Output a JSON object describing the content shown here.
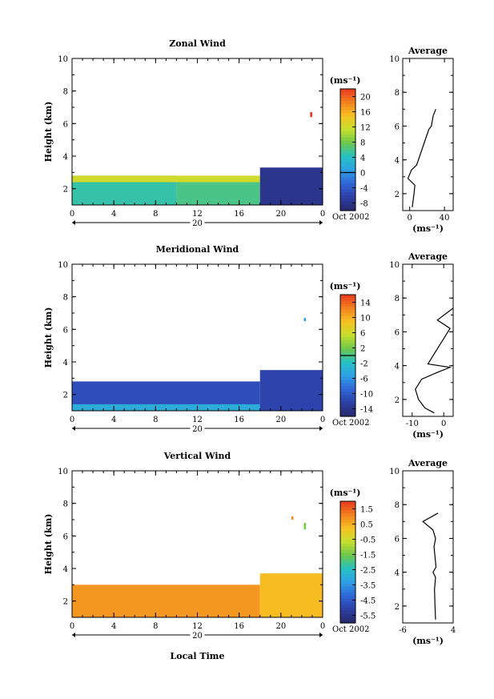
{
  "colors": {
    "axis": "#000000",
    "background": "#ffffff"
  },
  "chart_data": [
    {
      "type": "heatmap",
      "title": "Zonal Wind",
      "ylabel": "Height (km)",
      "xlabel": "",
      "x_ticks": [
        "0",
        "4",
        "8",
        "12",
        "16",
        "20",
        "0"
      ],
      "xlim": [
        0,
        24
      ],
      "ylim": [
        1,
        10
      ],
      "y_ticks": [
        "2",
        "4",
        "6",
        "8",
        "10"
      ],
      "date_marker": "20",
      "date_label": "Oct 2002",
      "colorbar": {
        "unit": "(ms⁻¹)",
        "ticks": [
          "20",
          "16",
          "12",
          "8",
          "4",
          "0",
          "-4",
          "-8"
        ],
        "min": -10,
        "max": 22,
        "zero_line": 0
      },
      "regions": [
        {
          "t0": 0,
          "t1": 10,
          "h0": 1,
          "h1": 2.8,
          "value": 5
        },
        {
          "t0": 10,
          "t1": 18,
          "h0": 1,
          "h1": 2.6,
          "value": 6
        },
        {
          "t0": 0,
          "t1": 18,
          "h0": 2.4,
          "h1": 2.8,
          "value": 12
        },
        {
          "t0": 18,
          "t1": 24,
          "h0": 1,
          "h1": 3.3,
          "value": -8
        },
        {
          "t0": 22.8,
          "t1": 23.0,
          "h0": 6.4,
          "h1": 6.7,
          "value": 22
        }
      ],
      "average": {
        "title": "Average",
        "xlabel": "(ms⁻¹)",
        "x_ticks": [
          "0",
          "40"
        ],
        "xlim": [
          -8,
          50
        ],
        "ylim": [
          1,
          10
        ],
        "y_ticks": [
          "2",
          "4",
          "6",
          "8",
          "10"
        ],
        "profile": [
          [
            3,
            1.2
          ],
          [
            4,
            1.6
          ],
          [
            5,
            2.0
          ],
          [
            6,
            2.5
          ],
          [
            -2,
            2.9
          ],
          [
            2,
            3.4
          ],
          [
            8,
            3.7
          ],
          [
            20,
            5.5
          ],
          [
            22,
            5.8
          ],
          [
            25,
            6.0
          ],
          [
            27,
            6.6
          ],
          [
            30,
            7.0
          ]
        ]
      }
    },
    {
      "type": "heatmap",
      "title": "Meridional Wind",
      "ylabel": "Height (km)",
      "xlabel": "",
      "x_ticks": [
        "0",
        "4",
        "8",
        "12",
        "16",
        "20",
        "0"
      ],
      "xlim": [
        0,
        24
      ],
      "ylim": [
        1,
        10
      ],
      "y_ticks": [
        "2",
        "4",
        "6",
        "8",
        "10"
      ],
      "date_marker": "20",
      "date_label": "Oct 2002",
      "colorbar": {
        "unit": "(ms⁻¹)",
        "ticks": [
          "14",
          "10",
          "6",
          "2",
          "-2",
          "-6",
          "-10",
          "-14"
        ],
        "min": -16,
        "max": 16,
        "zero_line": 0
      },
      "regions": [
        {
          "t0": 0,
          "t1": 18,
          "h0": 1,
          "h1": 2.8,
          "value": -11
        },
        {
          "t0": 0,
          "t1": 18,
          "h0": 1,
          "h1": 1.4,
          "value": -4
        },
        {
          "t0": 18,
          "t1": 24,
          "h0": 1,
          "h1": 3.5,
          "value": -12
        },
        {
          "t0": 22.2,
          "t1": 22.4,
          "h0": 6.5,
          "h1": 6.7,
          "value": -5
        }
      ],
      "average": {
        "title": "Average",
        "xlabel": "(ms⁻¹)",
        "x_ticks": [
          "-10",
          "0"
        ],
        "xlim": [
          -13,
          3
        ],
        "ylim": [
          1,
          10
        ],
        "y_ticks": [
          "2",
          "4",
          "6",
          "8",
          "10"
        ],
        "profile": [
          [
            -3,
            1.2
          ],
          [
            -6,
            1.5
          ],
          [
            -8,
            2.0
          ],
          [
            -9,
            2.6
          ],
          [
            -7,
            3.2
          ],
          [
            -2,
            3.6
          ],
          [
            2,
            3.9
          ],
          [
            -5,
            4.1
          ],
          [
            2,
            6.2
          ],
          [
            -2,
            6.7
          ],
          [
            3,
            7.4
          ]
        ]
      }
    },
    {
      "type": "heatmap",
      "title": "Vertical Wind",
      "ylabel": "Height (km)",
      "xlabel": "Local Time",
      "x_ticks": [
        "0",
        "4",
        "8",
        "12",
        "16",
        "20",
        "0"
      ],
      "xlim": [
        0,
        24
      ],
      "ylim": [
        1,
        10
      ],
      "y_ticks": [
        "2",
        "4",
        "6",
        "8",
        "10"
      ],
      "date_marker": "20",
      "date_label": "Oct 2002",
      "colorbar": {
        "unit": "(ms⁻¹)",
        "ticks": [
          "1.5",
          "0.5",
          "-0.5",
          "-1.5",
          "-2.5",
          "-3.5",
          "-4.5",
          "-5.5"
        ],
        "min": -6,
        "max": 2,
        "zero_line": null
      },
      "regions": [
        {
          "t0": 0,
          "t1": 18,
          "h0": 1,
          "h1": 3.0,
          "value": 0.8
        },
        {
          "t0": 18,
          "t1": 24,
          "h0": 1,
          "h1": 3.7,
          "value": 0.3
        },
        {
          "t0": 21.0,
          "t1": 21.2,
          "h0": 7.0,
          "h1": 7.2,
          "value": 1.0
        },
        {
          "t0": 22.2,
          "t1": 22.4,
          "h0": 6.4,
          "h1": 6.8,
          "value": -1.5
        }
      ],
      "average": {
        "title": "Average",
        "xlabel": "(ms⁻¹)",
        "x_ticks": [
          "-6",
          "4"
        ],
        "xlim": [
          -6,
          4
        ],
        "ylim": [
          1,
          10
        ],
        "y_ticks": [
          "2",
          "4",
          "6",
          "8",
          "10"
        ],
        "profile": [
          [
            0.5,
            1.2
          ],
          [
            0.4,
            2.0
          ],
          [
            0.3,
            3.0
          ],
          [
            0.5,
            3.7
          ],
          [
            0.0,
            4.0
          ],
          [
            0.6,
            4.3
          ],
          [
            0.2,
            5.5
          ],
          [
            0.5,
            6.0
          ],
          [
            0.0,
            6.5
          ],
          [
            -2.0,
            7.0
          ],
          [
            1.0,
            7.5
          ]
        ]
      }
    }
  ]
}
